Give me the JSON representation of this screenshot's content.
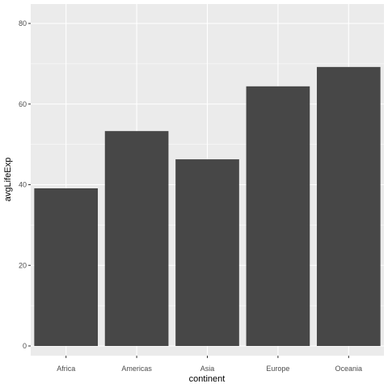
{
  "chart_data": {
    "type": "bar",
    "xlabel": "continent",
    "ylabel": "avgLifeExp",
    "categories": [
      "Africa",
      "Americas",
      "Asia",
      "Europe",
      "Oceania"
    ],
    "values": [
      39.1,
      53.3,
      46.3,
      64.4,
      69.2
    ],
    "ylim": [
      0,
      80
    ],
    "yticks": [
      0,
      20,
      40,
      60,
      80
    ],
    "ytick_labels": [
      "0",
      "20",
      "40",
      "60",
      "80"
    ],
    "grid": true,
    "colors": {
      "panel": "#ebebeb",
      "grid_major": "#ffffff",
      "bar": "#474747",
      "tick": "#333333"
    }
  }
}
